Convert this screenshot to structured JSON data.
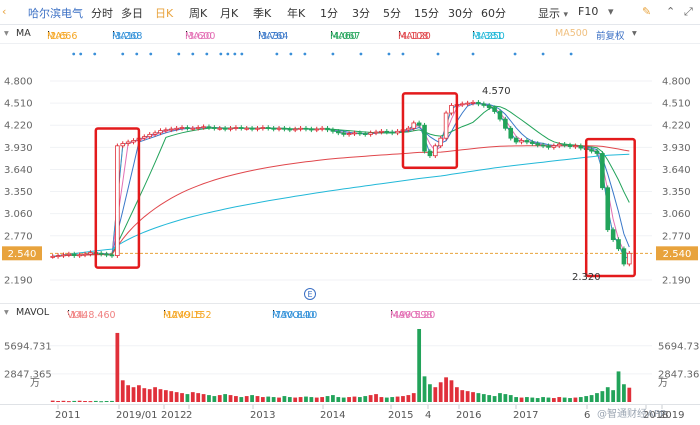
{
  "toolbar": {
    "stock_name": "哈尔滨电气",
    "periods": [
      "分时",
      "多日",
      "日K",
      "周K",
      "月K",
      "季K",
      "年K",
      "1分",
      "3分",
      "5分",
      "15分",
      "30分",
      "60分"
    ],
    "active_period": "日K",
    "display_label": "显示",
    "f10_label": "F10"
  },
  "ma_legend": {
    "label": "MA",
    "items": [
      {
        "name": "MA5",
        "value": "2.666",
        "color": "#f5a623"
      },
      {
        "name": "MA10",
        "value": "3.268",
        "color": "#2f8fd8"
      },
      {
        "name": "MA20",
        "value": "3.600",
        "color": "#e36fb4"
      },
      {
        "name": "MA30",
        "value": "3.764",
        "color": "#3a78c9"
      },
      {
        "name": "MA60",
        "value": "4.067",
        "color": "#22a35a"
      },
      {
        "name": "MA120",
        "value": "4.108",
        "color": "#e0474c"
      },
      {
        "name": "MA250",
        "value": "3.381",
        "color": "#22b8d8"
      },
      {
        "name": "MA500",
        "value": "",
        "color": "#f0c080"
      }
    ],
    "adjust_label": "前复权"
  },
  "vol_legend": {
    "label": "MAVOL",
    "items": [
      {
        "name": "VOL",
        "value": "1448.460",
        "color": "#f08080"
      },
      {
        "name": "MAVOL5",
        "value": "1249.152",
        "color": "#f5a623"
      },
      {
        "name": "MAVOL10",
        "value": "730.840",
        "color": "#2f8fd8"
      },
      {
        "name": "MAVOL20",
        "value": "499.598",
        "color": "#e36fb4"
      }
    ]
  },
  "watermark": "@智通财经APP",
  "marker_label": "E",
  "colors": {
    "up": "#e0303a",
    "down": "#22a35a",
    "highlight_box": "#e31a1c"
  },
  "chart_data": [
    {
      "type": "candlestick",
      "title": "",
      "y_ticks": [
        "4.800",
        "4.510",
        "4.220",
        "3.930",
        "3.640",
        "3.350",
        "3.060",
        "2.770",
        "2.540",
        "2.190"
      ],
      "y_tick_values": [
        4.8,
        4.51,
        4.22,
        3.93,
        3.64,
        3.35,
        3.06,
        2.77,
        2.54,
        2.19
      ],
      "ylim": [
        2.19,
        4.8
      ],
      "current_price": "2.540",
      "annotations": {
        "high": "4.570",
        "low": "2.320"
      },
      "x_ticks": [
        "2011",
        "2019/01",
        "2012",
        "2",
        "2013",
        "2014",
        "2015",
        "4",
        "2016",
        "2017",
        "6",
        "2018",
        "2019"
      ],
      "legend_placement": "top",
      "highlighted_regions": 3,
      "series": [
        {
          "name": "price",
          "color": "#e0303a",
          "values": [
            2.5,
            2.51,
            2.52,
            2.53,
            2.51,
            2.52,
            2.53,
            2.55,
            2.54,
            2.53,
            2.52,
            2.51,
            3.95,
            3.98,
            4.0,
            4.02,
            4.05,
            4.07,
            4.1,
            4.12,
            4.15,
            4.16,
            4.17,
            4.18,
            4.19,
            4.18,
            4.18,
            4.19,
            4.2,
            4.19,
            4.18,
            4.18,
            4.17,
            4.18,
            4.19,
            4.18,
            4.18,
            4.17,
            4.18,
            4.19,
            4.18,
            4.17,
            4.18,
            4.17,
            4.16,
            4.17,
            4.18,
            4.17,
            4.16,
            4.17,
            4.18,
            4.16,
            4.14,
            4.12,
            4.1,
            4.11,
            4.12,
            4.11,
            4.1,
            4.12,
            4.13,
            4.14,
            4.13,
            4.12,
            4.14,
            4.16,
            4.18,
            4.25,
            4.22,
            3.88,
            3.82,
            3.95,
            4.05,
            4.38,
            4.48,
            4.49,
            4.5,
            4.51,
            4.52,
            4.5,
            4.48,
            4.45,
            4.4,
            4.3,
            4.18,
            4.05,
            4.0,
            4.02,
            4.0,
            3.98,
            3.96,
            3.95,
            3.93,
            3.95,
            3.97,
            3.96,
            3.94,
            3.95,
            3.92,
            3.9,
            3.88,
            3.85,
            3.4,
            2.85,
            2.72,
            2.6,
            2.4,
            2.54
          ]
        }
      ]
    },
    {
      "type": "bar",
      "title": "",
      "y_ticks": [
        "5694.731",
        "2847.365",
        "万"
      ],
      "ylim": [
        0,
        7500
      ],
      "series": [
        {
          "name": "VOL",
          "values": [
            140,
            100,
            120,
            90,
            110,
            130,
            100,
            90,
            110,
            80,
            100,
            110,
            7000,
            2200,
            1700,
            1500,
            1700,
            1400,
            1300,
            1500,
            1300,
            1200,
            1100,
            1000,
            900,
            800,
            1000,
            900,
            800,
            700,
            600,
            700,
            800,
            700,
            600,
            500,
            600,
            700,
            600,
            500,
            550,
            500,
            450,
            600,
            500,
            450,
            500,
            550,
            500,
            450,
            500,
            600,
            700,
            500,
            450,
            500,
            550,
            500,
            600,
            700,
            800,
            500,
            450,
            500,
            550,
            600,
            700,
            900,
            7400,
            2600,
            1800,
            1500,
            2000,
            2500,
            2200,
            1500,
            1200,
            1100,
            1000,
            900,
            800,
            700,
            600,
            900,
            800,
            700,
            500,
            450,
            500,
            450,
            400,
            500,
            450,
            400,
            500,
            450,
            400,
            450,
            500,
            600,
            700,
            900,
            1100,
            1500,
            1200,
            3100,
            1800,
            1450
          ]
        }
      ]
    }
  ]
}
